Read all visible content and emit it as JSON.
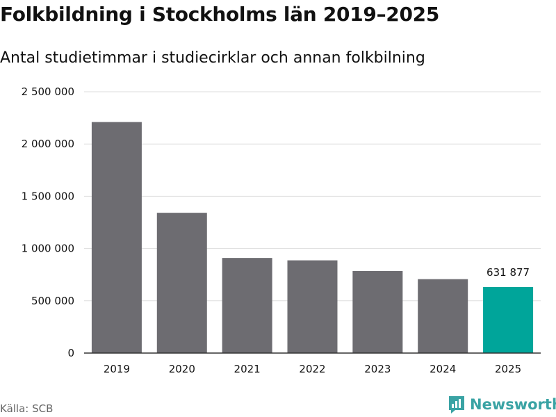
{
  "header": {
    "title": "Folkbildning i Stockholms län 2019–2025",
    "subtitle": "Antal studietimmar i studiecirklar och annan folkbilning"
  },
  "footer": {
    "source": "Källa: SCB",
    "brand": "Newsworthy"
  },
  "colors": {
    "bar": "#6d6c71",
    "highlight": "#00a59a",
    "grid": "#dddddd",
    "axis": "#333333",
    "brand": "#3aa3a4"
  },
  "chart_data": {
    "type": "bar",
    "title": "Folkbildning i Stockholms län 2019–2025",
    "subtitle": "Antal studietimmar i studiecirklar och annan folkbilning",
    "xlabel": "",
    "ylabel": "",
    "categories": [
      "2019",
      "2020",
      "2021",
      "2022",
      "2023",
      "2024",
      "2025"
    ],
    "values": [
      2210000,
      1342000,
      910000,
      887000,
      785000,
      707000,
      631877
    ],
    "highlight_index": 6,
    "data_labels": [
      {
        "index": 6,
        "text": "631 877"
      }
    ],
    "ylim": [
      0,
      2500000
    ],
    "yticks": [
      {
        "value": 0,
        "label": "0"
      },
      {
        "value": 500000,
        "label": "500 000"
      },
      {
        "value": 1000000,
        "label": "1 000 000"
      },
      {
        "value": 1500000,
        "label": "1 500 000"
      },
      {
        "value": 2000000,
        "label": "2 000 000"
      },
      {
        "value": 2500000,
        "label": "2 500 000"
      }
    ],
    "grid": true,
    "legend": "none"
  }
}
